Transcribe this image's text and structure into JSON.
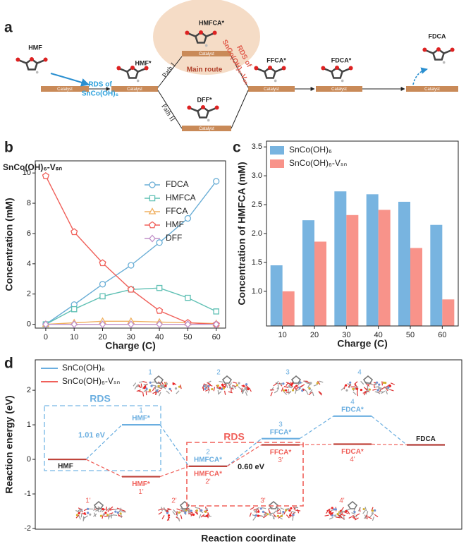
{
  "panel_a": {
    "label": "a",
    "molecules": [
      "HMF",
      "HMF*",
      "HMFCA*",
      "DFF*",
      "FFCA*",
      "FDCA*",
      "FDCA"
    ],
    "catalyst": "Catalyst",
    "rds_1": [
      "RDS of",
      "SnCo(OH)₆"
    ],
    "rds_2": [
      "RDS of",
      "SnCo(OH)₆-Vₛₙ"
    ],
    "main_route": "Main route",
    "path_1": "Path I",
    "path_2": "Path II"
  },
  "chart_data": [
    {
      "type": "line",
      "label": "b",
      "title": "SnCo(OH)₆-Vₛₙ",
      "x_label": "Charge (C)",
      "y_label": "Concentration (mM)",
      "x": [
        0,
        10,
        20,
        30,
        40,
        50,
        60
      ],
      "series": [
        {
          "name": "FDCA",
          "color": "#6aaed6",
          "marker": "circle",
          "values": [
            0,
            1.3,
            2.65,
            3.9,
            5.4,
            7.0,
            9.45
          ]
        },
        {
          "name": "HMFCA",
          "color": "#5fc0b4",
          "marker": "square",
          "values": [
            0,
            1.0,
            1.85,
            2.3,
            2.4,
            1.75,
            0.85
          ]
        },
        {
          "name": "FFCA",
          "color": "#f0b060",
          "marker": "triangle",
          "values": [
            0,
            0.1,
            0.2,
            0.2,
            0.15,
            0.1,
            0.05
          ]
        },
        {
          "name": "HMF",
          "color": "#f0605a",
          "marker": "pentagon",
          "values": [
            9.8,
            6.1,
            4.05,
            2.3,
            0.9,
            0.1,
            0
          ]
        },
        {
          "name": "DFF",
          "color": "#c090c8",
          "marker": "diamond",
          "values": [
            0,
            0,
            0,
            0,
            0,
            0,
            0
          ]
        }
      ],
      "xlim": [
        -3.7,
        63.3
      ],
      "ylim": [
        -0.25,
        10.8
      ],
      "xticks": [
        0,
        10,
        20,
        30,
        40,
        50,
        60
      ],
      "yticks": [
        0,
        2,
        4,
        6,
        8,
        10
      ],
      "legend": "upper right",
      "grid": false
    },
    {
      "type": "bar",
      "label": "c",
      "x_label": "Charge (C)",
      "y_label": "Concentration of HMFCA (mM)",
      "categories": [
        "10",
        "20",
        "30",
        "40",
        "50",
        "60"
      ],
      "series": [
        {
          "name": "SnCo(OH)₆",
          "color": "#78b4e0",
          "values": [
            1.45,
            2.23,
            2.73,
            2.68,
            2.55,
            2.15
          ]
        },
        {
          "name": "SnCo(OH)₆-Vₛₙ",
          "color": "#f8938a",
          "values": [
            1.0,
            1.86,
            2.32,
            2.41,
            1.75,
            0.86
          ]
        }
      ],
      "ylim": [
        0.4,
        3.6
      ],
      "yticks": [
        {
          "value": 1,
          "label": "1.0"
        },
        1.5,
        {
          "value": 2,
          "label": "2.0"
        },
        2.5,
        {
          "value": 3,
          "label": "3.0"
        },
        3.5
      ],
      "legend": "upper left",
      "grid": false
    },
    {
      "type": "energy",
      "label": "d",
      "x_label": "Reaction coordinate",
      "y_label": "Reaction energy (eV)",
      "end_labels": [
        "HMF",
        "FDCA"
      ],
      "series": [
        {
          "name": "SnCo(OH)₆",
          "color": "#6aaee0",
          "values": [
            0,
            1.0,
            -0.2,
            0.6,
            1.25,
            0.42
          ],
          "labels": [
            null,
            "HMF*",
            "HMFCA*",
            "FFCA*",
            "FDCA*",
            null
          ],
          "numbers": [
            null,
            "1",
            "2",
            "3",
            "4",
            null
          ]
        },
        {
          "name": "SnCo(OH)₆-Vₛₙ",
          "color": "#f0605a",
          "values": [
            0,
            -0.5,
            -0.2,
            0.42,
            0.44,
            0.42
          ],
          "labels": [
            null,
            "HMF*",
            "HMFCA*",
            "FFCA*",
            "FDCA*",
            null
          ],
          "numbers": [
            null,
            "1'",
            "2'",
            "3'",
            "4'",
            null
          ]
        }
      ],
      "structure_labels": [
        [
          "1",
          "2",
          "3",
          "4"
        ],
        [
          "1'",
          "2'",
          "3'",
          "4'"
        ]
      ],
      "annotations": [
        "RDS",
        "1.01 eV",
        "RDS",
        "0.60 eV"
      ],
      "ylim": [
        -2.02,
        2.88
      ],
      "yticks": [
        -2,
        -1,
        0,
        1,
        2
      ],
      "legend": "upper left",
      "grid": false
    }
  ]
}
